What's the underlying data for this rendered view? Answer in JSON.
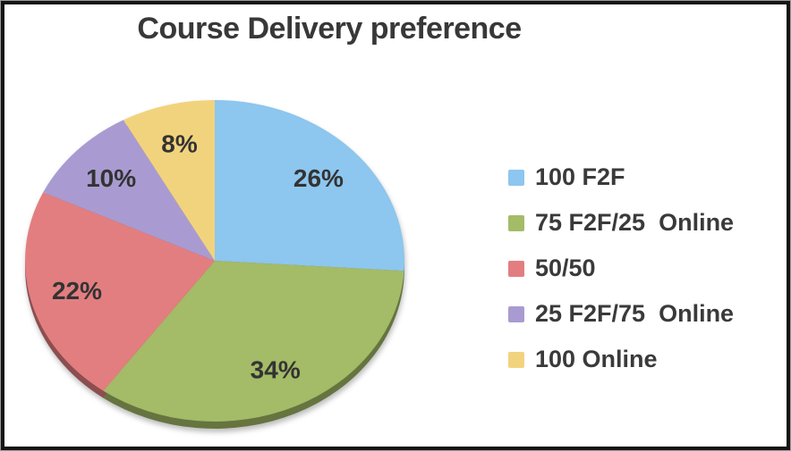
{
  "chart_data": {
    "type": "pie",
    "title": "Course Delivery preference",
    "legend_position": "right",
    "start_angle_deg": 0,
    "direction": "clockwise",
    "effect": "3d-bottom-rim-with-shadow",
    "title_color": "#383838",
    "label_color": "#333333",
    "frame_border_color": "#151515",
    "slices": [
      {
        "label": "100 F2F",
        "value": 26,
        "display": "26%",
        "color": "#8DC6EE"
      },
      {
        "label": "75 F2F/25  Online",
        "value": 34,
        "display": "34%",
        "color": "#A4BB67"
      },
      {
        "label": "50/50",
        "value": 22,
        "display": "22%",
        "color": "#E27E80"
      },
      {
        "label": "25 F2F/75  Online",
        "value": 10,
        "display": "10%",
        "color": "#A99BD1"
      },
      {
        "label": "100 Online",
        "value": 8,
        "display": "8%",
        "color": "#F2D37D"
      }
    ]
  }
}
